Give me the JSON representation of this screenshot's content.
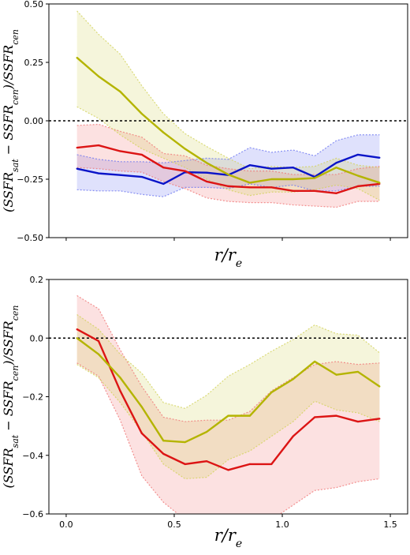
{
  "chart_data": [
    {
      "type": "line",
      "title": "",
      "xlabel": "r/r_e",
      "ylabel": "(SSFR_sat − SSFR_cen)/SSFR_cen",
      "xlim": [
        -0.08,
        1.58
      ],
      "ylim": [
        -0.5,
        0.5
      ],
      "x_ticks": [
        0.0,
        0.5,
        1.0,
        1.5
      ],
      "x_tick_labels_shown": false,
      "y_ticks": [
        -0.5,
        -0.25,
        0.0,
        0.25,
        0.5
      ],
      "y_tick_labels": [
        "−0.50",
        "−0.25",
        "0.00",
        "0.25",
        "0.50"
      ],
      "reference_line": {
        "y": 0.0,
        "style": "dotted",
        "color": "#000000"
      },
      "grid": false,
      "legend": "none",
      "x": [
        0.05,
        0.15,
        0.25,
        0.35,
        0.45,
        0.55,
        0.65,
        0.75,
        0.85,
        0.95,
        1.05,
        1.15,
        1.25,
        1.35,
        1.45
      ],
      "series": [
        {
          "color": "#0a14c8",
          "band_color": "#6e78f0",
          "values": [
            -0.205,
            -0.225,
            -0.232,
            -0.24,
            -0.27,
            -0.22,
            -0.222,
            -0.232,
            -0.19,
            -0.205,
            -0.2,
            -0.24,
            -0.18,
            -0.145,
            -0.158
          ],
          "upper": [
            -0.145,
            -0.165,
            -0.175,
            -0.175,
            -0.18,
            -0.17,
            -0.16,
            -0.165,
            -0.115,
            -0.135,
            -0.125,
            -0.15,
            -0.085,
            -0.06,
            -0.06
          ],
          "lower": [
            -0.295,
            -0.3,
            -0.3,
            -0.315,
            -0.325,
            -0.285,
            -0.285,
            -0.29,
            -0.27,
            -0.285,
            -0.275,
            -0.3,
            -0.3,
            -0.28,
            -0.28
          ]
        },
        {
          "color": "#dc1414",
          "band_color": "#f07878",
          "values": [
            -0.115,
            -0.105,
            -0.13,
            -0.145,
            -0.2,
            -0.215,
            -0.26,
            -0.28,
            -0.285,
            -0.285,
            -0.3,
            -0.3,
            -0.31,
            -0.28,
            -0.27
          ],
          "upper": [
            -0.02,
            -0.015,
            -0.045,
            -0.07,
            -0.14,
            -0.15,
            -0.19,
            -0.205,
            -0.215,
            -0.215,
            -0.23,
            -0.23,
            -0.23,
            -0.205,
            -0.195
          ],
          "lower": [
            -0.2,
            -0.205,
            -0.215,
            -0.22,
            -0.26,
            -0.29,
            -0.33,
            -0.345,
            -0.35,
            -0.35,
            -0.36,
            -0.365,
            -0.37,
            -0.345,
            -0.345
          ]
        },
        {
          "color": "#b4b400",
          "band_color": "#d2d25a",
          "values": [
            0.27,
            0.19,
            0.125,
            0.03,
            -0.05,
            -0.12,
            -0.18,
            -0.23,
            -0.265,
            -0.25,
            -0.25,
            -0.245,
            -0.2,
            -0.235,
            -0.265
          ],
          "upper": [
            0.47,
            0.37,
            0.285,
            0.15,
            0.03,
            -0.055,
            -0.11,
            -0.16,
            -0.205,
            -0.195,
            -0.2,
            -0.195,
            -0.16,
            -0.19,
            -0.2
          ],
          "lower": [
            0.06,
            0.01,
            -0.06,
            -0.12,
            -0.16,
            -0.2,
            -0.25,
            -0.295,
            -0.32,
            -0.305,
            -0.305,
            -0.295,
            -0.275,
            -0.29,
            -0.34
          ]
        }
      ]
    },
    {
      "type": "line",
      "title": "",
      "xlabel": "r/r_e",
      "ylabel": "(SSFR_sat − SSFR_cen)/SSFR_cen",
      "xlim": [
        -0.08,
        1.58
      ],
      "ylim": [
        -0.6,
        0.2
      ],
      "x_ticks": [
        0.0,
        0.5,
        1.0,
        1.5
      ],
      "x_tick_labels": [
        "0.0",
        "0.5",
        "1.0",
        "1.5"
      ],
      "y_ticks": [
        -0.6,
        -0.4,
        -0.2,
        0.0,
        0.2
      ],
      "y_tick_labels": [
        "−0.6",
        "−0.4",
        "−0.2",
        "0.0",
        "0.2"
      ],
      "reference_line": {
        "y": 0.0,
        "style": "dotted",
        "color": "#000000"
      },
      "grid": false,
      "legend": "none",
      "x": [
        0.05,
        0.15,
        0.25,
        0.35,
        0.45,
        0.55,
        0.65,
        0.75,
        0.85,
        0.95,
        1.05,
        1.15,
        1.25,
        1.35,
        1.45
      ],
      "series": [
        {
          "color": "#dc1414",
          "band_color": "#f07878",
          "values": [
            0.03,
            -0.01,
            -0.18,
            -0.325,
            -0.395,
            -0.43,
            -0.42,
            -0.45,
            -0.43,
            -0.43,
            -0.335,
            -0.27,
            -0.265,
            -0.285,
            -0.275
          ],
          "upper": [
            0.145,
            0.1,
            -0.04,
            -0.165,
            -0.27,
            -0.285,
            -0.28,
            -0.28,
            -0.25,
            -0.18,
            -0.135,
            -0.09,
            -0.08,
            -0.09,
            -0.085
          ],
          "lower": [
            -0.085,
            -0.13,
            -0.28,
            -0.47,
            -0.56,
            -0.62,
            -0.62,
            -0.62,
            -0.62,
            -0.62,
            -0.57,
            -0.52,
            -0.51,
            -0.49,
            -0.48
          ]
        },
        {
          "color": "#b4b400",
          "band_color": "#d2d25a",
          "values": [
            0.0,
            -0.055,
            -0.135,
            -0.235,
            -0.35,
            -0.355,
            -0.32,
            -0.265,
            -0.265,
            -0.185,
            -0.14,
            -0.08,
            -0.125,
            -0.115,
            -0.165
          ],
          "upper": [
            0.08,
            0.03,
            -0.055,
            -0.12,
            -0.22,
            -0.24,
            -0.195,
            -0.13,
            -0.09,
            -0.045,
            -0.005,
            0.045,
            0.015,
            0.01,
            -0.05
          ],
          "lower": [
            -0.09,
            -0.135,
            -0.22,
            -0.32,
            -0.43,
            -0.48,
            -0.475,
            -0.415,
            -0.385,
            -0.335,
            -0.285,
            -0.215,
            -0.245,
            -0.255,
            -0.285
          ]
        }
      ]
    }
  ]
}
